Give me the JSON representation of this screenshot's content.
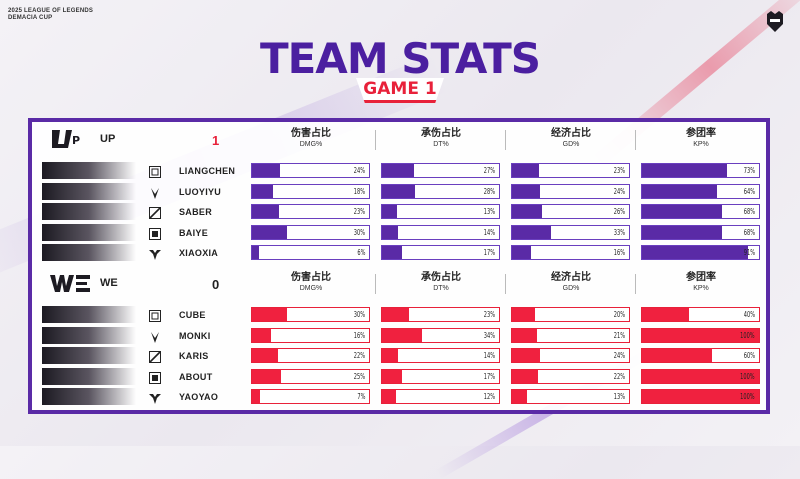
{
  "brand": {
    "line1": "2025 LEAGUE OF LEGENDS",
    "line2": "DEMACIA CUP"
  },
  "title": "TEAM STATS",
  "subtitle": "GAME 1",
  "columns": [
    {
      "cn": "伤害占比",
      "en": "DMG%"
    },
    {
      "cn": "承伤占比",
      "en": "DT%"
    },
    {
      "cn": "经济占比",
      "en": "GD%"
    },
    {
      "cn": "参团率",
      "en": "KP%"
    }
  ],
  "colors": {
    "primary": "#5a2aa6",
    "accent": "#e8213a",
    "title": "#4b1fa0"
  },
  "teams": [
    {
      "name": "UP",
      "score": "1",
      "logo_text": "UP",
      "players": [
        {
          "name": "LIANGCHEN",
          "role_icon": "top-lane-icon",
          "dmg": "24%",
          "dt": "27%",
          "gd": "23%",
          "kp": "73%",
          "dmg_v": 24,
          "dt_v": 27,
          "gd_v": 23,
          "kp_v": 73
        },
        {
          "name": "LUOYIYU",
          "role_icon": "jungle-icon",
          "dmg": "18%",
          "dt": "28%",
          "gd": "24%",
          "kp": "64%",
          "dmg_v": 18,
          "dt_v": 28,
          "gd_v": 24,
          "kp_v": 64
        },
        {
          "name": "SABER",
          "role_icon": "mid-lane-icon",
          "dmg": "23%",
          "dt": "13%",
          "gd": "26%",
          "kp": "68%",
          "dmg_v": 23,
          "dt_v": 13,
          "gd_v": 26,
          "kp_v": 68
        },
        {
          "name": "BAIYE",
          "role_icon": "bot-lane-icon",
          "dmg": "30%",
          "dt": "14%",
          "gd": "33%",
          "kp": "68%",
          "dmg_v": 30,
          "dt_v": 14,
          "gd_v": 33,
          "kp_v": 68
        },
        {
          "name": "XIAOXIA",
          "role_icon": "support-icon",
          "dmg": "6%",
          "dt": "17%",
          "gd": "16%",
          "kp": "91%",
          "dmg_v": 6,
          "dt_v": 17,
          "gd_v": 16,
          "kp_v": 91
        }
      ]
    },
    {
      "name": "WE",
      "score": "0",
      "logo_text": "WE",
      "players": [
        {
          "name": "CUBE",
          "role_icon": "top-lane-icon",
          "dmg": "30%",
          "dt": "23%",
          "gd": "20%",
          "kp": "40%",
          "dmg_v": 30,
          "dt_v": 23,
          "gd_v": 20,
          "kp_v": 40
        },
        {
          "name": "MONKI",
          "role_icon": "jungle-icon",
          "dmg": "16%",
          "dt": "34%",
          "gd": "21%",
          "kp": "100%",
          "dmg_v": 16,
          "dt_v": 34,
          "gd_v": 21,
          "kp_v": 100
        },
        {
          "name": "KARIS",
          "role_icon": "mid-lane-icon",
          "dmg": "22%",
          "dt": "14%",
          "gd": "24%",
          "kp": "60%",
          "dmg_v": 22,
          "dt_v": 14,
          "gd_v": 24,
          "kp_v": 60
        },
        {
          "name": "ABOUT",
          "role_icon": "bot-lane-icon",
          "dmg": "25%",
          "dt": "17%",
          "gd": "22%",
          "kp": "100%",
          "dmg_v": 25,
          "dt_v": 17,
          "gd_v": 22,
          "kp_v": 100
        },
        {
          "name": "YAOYAO",
          "role_icon": "support-icon",
          "dmg": "7%",
          "dt": "12%",
          "gd": "13%",
          "kp": "100%",
          "dmg_v": 7,
          "dt_v": 12,
          "gd_v": 13,
          "kp_v": 100
        }
      ]
    }
  ]
}
